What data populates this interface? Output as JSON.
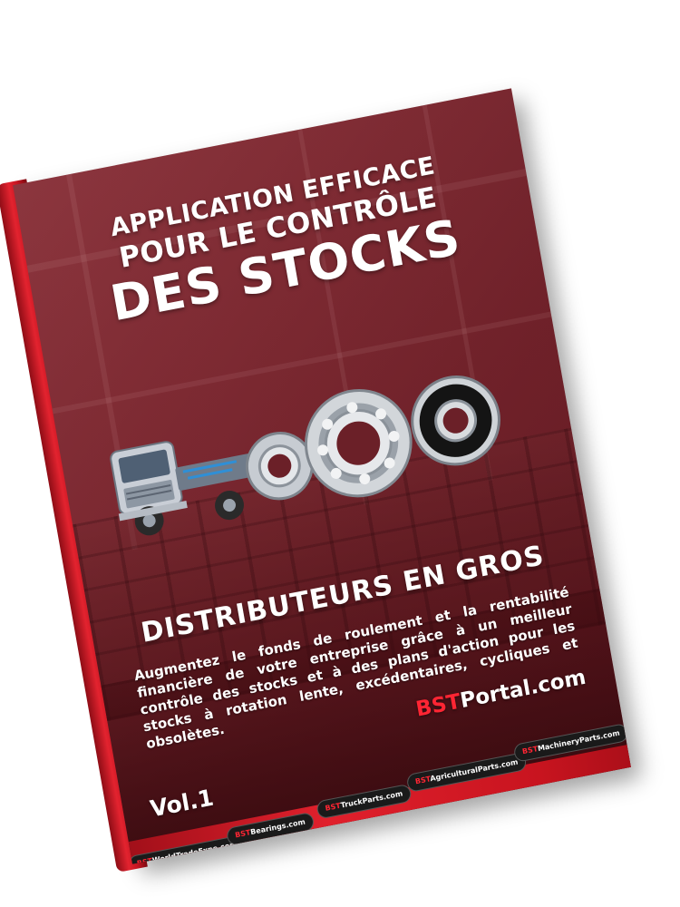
{
  "cover": {
    "title_line1": "APPLICATION EFFICACE",
    "title_line2": "POUR LE CONTRÔLE",
    "title_line3": "DES STOCKS",
    "subtitle": "DISTRIBUTEURS EN GROS",
    "description": "Augmentez le fonds de roulement et la rentabilité financière de votre entreprise grâce à un meilleur contrôle des stocks et à des plans d'action pour les stocks à rotation lente, excédentaires, cycliques et obsolètes.",
    "brand_prefix": "BST",
    "brand_suffix": "Portal.com",
    "volume": "Vol.1"
  },
  "sites": [
    {
      "prefix": "BST",
      "name": "WorldTradeExpo.com"
    },
    {
      "prefix": "BST",
      "name": "Bearings.com"
    },
    {
      "prefix": "BST",
      "name": "TruckParts.com"
    },
    {
      "prefix": "BST",
      "name": "AgriculturalParts.com"
    },
    {
      "prefix": "BST",
      "name": "MachineryParts.com"
    }
  ],
  "colors": {
    "cover_red": "#7b2e36",
    "spine_red": "#e3232f",
    "brand_red": "#ff2533",
    "text": "#ffffff"
  },
  "images": [
    "truck-cutaway-illustration",
    "ball-bearings-illustration"
  ]
}
